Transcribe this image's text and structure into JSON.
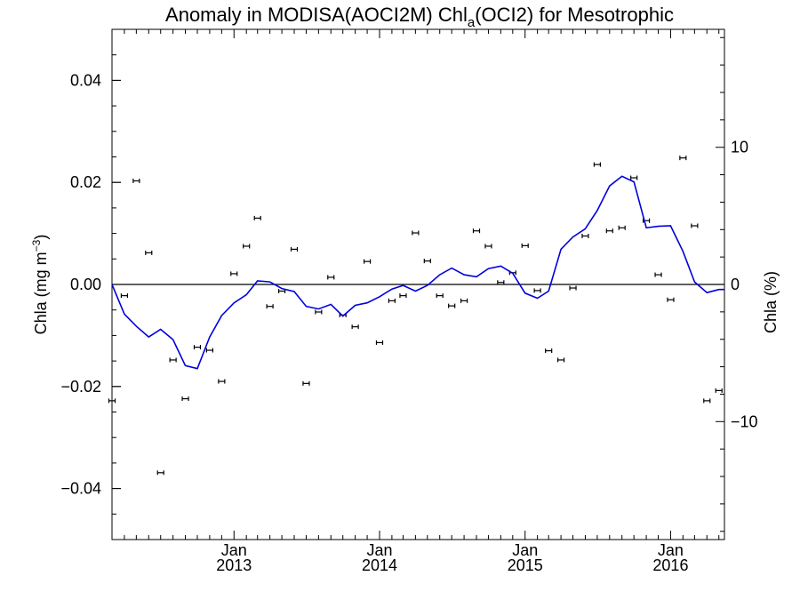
{
  "chart_data": {
    "type": "scatter",
    "title_main": "Anomaly in MODISA(AOCI2M) Chl",
    "title_sub": "a",
    "title_tail": "(OCI2) for Mesotrophic",
    "ylabel_left_main": "Chla (mg m",
    "ylabel_left_sup": "−3",
    "ylabel_left_close": ")",
    "ylabel_right": "Chla (%)",
    "x_domain": [
      "2012-03-01",
      "2016-05-15"
    ],
    "y_left_range": [
      -0.05,
      0.05
    ],
    "y_right_range": [
      -18.6,
      18.6
    ],
    "y_left_ticks": [
      {
        "value": -0.04,
        "label": "−0.04"
      },
      {
        "value": -0.02,
        "label": "−0.02"
      },
      {
        "value": 0.0,
        "label": "0.00"
      },
      {
        "value": 0.02,
        "label": "0.02"
      },
      {
        "value": 0.04,
        "label": "0.04"
      }
    ],
    "y_right_ticks": [
      {
        "value": -10,
        "label": "−10"
      },
      {
        "value": 0,
        "label": "0"
      },
      {
        "value": 10,
        "label": "10"
      }
    ],
    "x_ticks": [
      {
        "date": "2013-01-01",
        "month": "Jan",
        "year": "2013"
      },
      {
        "date": "2014-01-01",
        "month": "Jan",
        "year": "2014"
      },
      {
        "date": "2015-01-01",
        "month": "Jan",
        "year": "2015"
      },
      {
        "date": "2016-01-01",
        "month": "Jan",
        "year": "2016"
      }
    ],
    "zero_line": 0,
    "series": [
      {
        "kind": "points_with_error_bars",
        "color": "#000000",
        "points": [
          {
            "x": "2012-03-01",
            "y": -0.0228
          },
          {
            "x": "2012-04-01",
            "y": -0.0022
          },
          {
            "x": "2012-05-01",
            "y": 0.0203
          },
          {
            "x": "2012-06-01",
            "y": 0.0062
          },
          {
            "x": "2012-07-01",
            "y": -0.0369
          },
          {
            "x": "2012-08-01",
            "y": -0.0148
          },
          {
            "x": "2012-09-01",
            "y": -0.0224
          },
          {
            "x": "2012-10-01",
            "y": -0.0123
          },
          {
            "x": "2012-11-01",
            "y": -0.0129
          },
          {
            "x": "2012-12-01",
            "y": -0.019
          },
          {
            "x": "2013-01-01",
            "y": 0.0021
          },
          {
            "x": "2013-02-01",
            "y": 0.0075
          },
          {
            "x": "2013-03-01",
            "y": 0.013
          },
          {
            "x": "2013-04-01",
            "y": -0.0043
          },
          {
            "x": "2013-05-01",
            "y": -0.0013
          },
          {
            "x": "2013-06-01",
            "y": 0.0069
          },
          {
            "x": "2013-07-01",
            "y": -0.0194
          },
          {
            "x": "2013-08-01",
            "y": -0.0054
          },
          {
            "x": "2013-09-01",
            "y": 0.0014
          },
          {
            "x": "2013-10-01",
            "y": -0.006
          },
          {
            "x": "2013-11-01",
            "y": -0.0083
          },
          {
            "x": "2013-12-01",
            "y": 0.0045
          },
          {
            "x": "2014-01-01",
            "y": -0.0114
          },
          {
            "x": "2014-02-01",
            "y": -0.0032
          },
          {
            "x": "2014-03-01",
            "y": -0.0022
          },
          {
            "x": "2014-04-01",
            "y": 0.0101
          },
          {
            "x": "2014-05-01",
            "y": 0.0046
          },
          {
            "x": "2014-06-01",
            "y": -0.0022
          },
          {
            "x": "2014-07-01",
            "y": -0.0042
          },
          {
            "x": "2014-08-01",
            "y": -0.0032
          },
          {
            "x": "2014-09-01",
            "y": 0.0105
          },
          {
            "x": "2014-10-01",
            "y": 0.0075
          },
          {
            "x": "2014-11-01",
            "y": 0.0004
          },
          {
            "x": "2014-12-01",
            "y": 0.0023
          },
          {
            "x": "2015-01-01",
            "y": 0.0076
          },
          {
            "x": "2015-02-01",
            "y": -0.0012
          },
          {
            "x": "2015-03-01",
            "y": -0.013
          },
          {
            "x": "2015-04-01",
            "y": -0.0148
          },
          {
            "x": "2015-05-01",
            "y": -0.0007
          },
          {
            "x": "2015-06-01",
            "y": 0.0095
          },
          {
            "x": "2015-07-01",
            "y": 0.0235
          },
          {
            "x": "2015-08-01",
            "y": 0.0105
          },
          {
            "x": "2015-09-01",
            "y": 0.0111
          },
          {
            "x": "2015-10-01",
            "y": 0.0209
          },
          {
            "x": "2015-11-01",
            "y": 0.0125
          },
          {
            "x": "2015-12-01",
            "y": 0.0019
          },
          {
            "x": "2016-01-01",
            "y": -0.003
          },
          {
            "x": "2016-02-01",
            "y": 0.0248
          },
          {
            "x": "2016-03-01",
            "y": 0.0115
          },
          {
            "x": "2016-04-01",
            "y": -0.0228
          },
          {
            "x": "2016-05-01",
            "y": -0.0208
          }
        ]
      },
      {
        "kind": "smoothed_line",
        "color": "#0000dd",
        "points": [
          {
            "x": "2012-03-01",
            "y": 0.0
          },
          {
            "x": "2012-04-01",
            "y": -0.0058
          },
          {
            "x": "2012-05-01",
            "y": -0.0082
          },
          {
            "x": "2012-06-01",
            "y": -0.0103
          },
          {
            "x": "2012-07-01",
            "y": -0.0088
          },
          {
            "x": "2012-08-01",
            "y": -0.0108
          },
          {
            "x": "2012-09-01",
            "y": -0.0159
          },
          {
            "x": "2012-10-01",
            "y": -0.0165
          },
          {
            "x": "2012-11-01",
            "y": -0.0103
          },
          {
            "x": "2012-12-01",
            "y": -0.0061
          },
          {
            "x": "2013-01-01",
            "y": -0.0036
          },
          {
            "x": "2013-02-01",
            "y": -0.002
          },
          {
            "x": "2013-03-01",
            "y": 0.0007
          },
          {
            "x": "2013-04-01",
            "y": 0.0005
          },
          {
            "x": "2013-05-01",
            "y": -0.0008
          },
          {
            "x": "2013-06-01",
            "y": -0.0014
          },
          {
            "x": "2013-07-01",
            "y": -0.0043
          },
          {
            "x": "2013-08-01",
            "y": -0.0048
          },
          {
            "x": "2013-09-01",
            "y": -0.0039
          },
          {
            "x": "2013-10-01",
            "y": -0.0062
          },
          {
            "x": "2013-11-01",
            "y": -0.0041
          },
          {
            "x": "2013-12-01",
            "y": -0.0036
          },
          {
            "x": "2014-01-01",
            "y": -0.0024
          },
          {
            "x": "2014-02-01",
            "y": -0.0009
          },
          {
            "x": "2014-03-01",
            "y": -0.0002
          },
          {
            "x": "2014-04-01",
            "y": -0.0013
          },
          {
            "x": "2014-05-01",
            "y": -0.0002
          },
          {
            "x": "2014-06-01",
            "y": 0.0019
          },
          {
            "x": "2014-07-01",
            "y": 0.0032
          },
          {
            "x": "2014-08-01",
            "y": 0.0019
          },
          {
            "x": "2014-09-01",
            "y": 0.0015
          },
          {
            "x": "2014-10-01",
            "y": 0.0031
          },
          {
            "x": "2014-11-01",
            "y": 0.0036
          },
          {
            "x": "2014-12-01",
            "y": 0.0022
          },
          {
            "x": "2015-01-01",
            "y": -0.0017
          },
          {
            "x": "2015-02-01",
            "y": -0.0027
          },
          {
            "x": "2015-03-01",
            "y": -0.0013
          },
          {
            "x": "2015-04-01",
            "y": 0.0069
          },
          {
            "x": "2015-05-01",
            "y": 0.0093
          },
          {
            "x": "2015-06-01",
            "y": 0.0109
          },
          {
            "x": "2015-07-01",
            "y": 0.0145
          },
          {
            "x": "2015-08-01",
            "y": 0.0193
          },
          {
            "x": "2015-09-01",
            "y": 0.0212
          },
          {
            "x": "2015-10-01",
            "y": 0.0201
          },
          {
            "x": "2015-11-01",
            "y": 0.0111
          },
          {
            "x": "2015-12-01",
            "y": 0.0114
          },
          {
            "x": "2016-01-01",
            "y": 0.0115
          },
          {
            "x": "2016-02-01",
            "y": 0.0065
          },
          {
            "x": "2016-03-01",
            "y": 0.0005
          },
          {
            "x": "2016-04-01",
            "y": -0.0016
          },
          {
            "x": "2016-05-01",
            "y": -0.001
          },
          {
            "x": "2016-05-15",
            "y": -0.001
          }
        ]
      }
    ]
  }
}
